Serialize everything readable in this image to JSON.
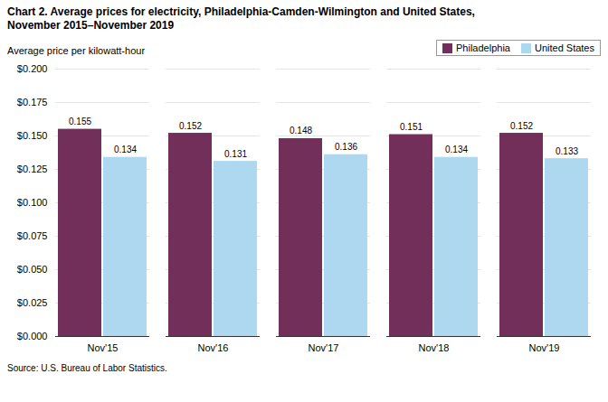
{
  "chart_data": {
    "type": "bar",
    "title": "Chart 2. Average prices for electricity, Philadelphia-Camden-Wilmington and United States,",
    "subtitle": "November 2015–November 2019",
    "ylabel": "Average price per kilowatt-hour",
    "source": "Source: U.S. Bureau of Labor Statistics.",
    "categories": [
      "Nov'15",
      "Nov'16",
      "Nov'17",
      "Nov'18",
      "Nov'19"
    ],
    "series": [
      {
        "name": "Philadelphia",
        "color": "#722F5A",
        "values": [
          0.155,
          0.152,
          0.148,
          0.151,
          0.152
        ]
      },
      {
        "name": "United States",
        "color": "#ADD8F0",
        "values": [
          0.134,
          0.131,
          0.136,
          0.134,
          0.133
        ]
      }
    ],
    "ylim": [
      0.0,
      0.2
    ],
    "yticks": [
      {
        "value": 0.0,
        "label": "$0.000"
      },
      {
        "value": 0.025,
        "label": "$0.025"
      },
      {
        "value": 0.05,
        "label": "$0.050"
      },
      {
        "value": 0.075,
        "label": "$0.075"
      },
      {
        "value": 0.1,
        "label": "$0.100"
      },
      {
        "value": 0.125,
        "label": "$0.125"
      },
      {
        "value": 0.15,
        "label": "$0.150"
      },
      {
        "value": 0.175,
        "label": "$0.175"
      },
      {
        "value": 0.2,
        "label": "$0.200"
      }
    ],
    "grid": true,
    "legend": "upper right",
    "data_labels": true
  }
}
